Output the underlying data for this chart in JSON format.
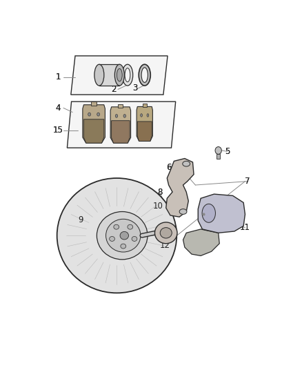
{
  "bg_color": "#ffffff",
  "line_color": "#2a2a2a",
  "gray_line": "#888888",
  "light_gray": "#cccccc",
  "mid_gray": "#aaaaaa",
  "fig_width": 4.38,
  "fig_height": 5.33,
  "dpi": 100,
  "font_size": 8.5
}
